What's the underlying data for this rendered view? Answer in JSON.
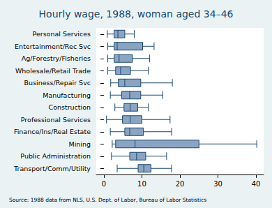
{
  "chart_data": {
    "type": "boxplot",
    "title": "Hourly wage, 1988, woman aged 34–46",
    "note": "Source: 1988 data from NLS, U.S. Dept. of Labor, Bureau of Labor Statistics",
    "orientation": "horizontal",
    "categories": [
      "Personal Services",
      "Entertainment/Rec Svc",
      "Ag/Forestry/Fisheries",
      "Wholesale/Retail Trade",
      "Business/Repair Svc",
      "Manufacturing",
      "Construction",
      "Professional Services",
      "Finance/Ins/Real Estate",
      "Mining",
      "Public Administration",
      "Transport/Comm/Utility"
    ],
    "values": [
      [
        0.9,
        2.7,
        3.7,
        5.5,
        8.0
      ],
      [
        1.0,
        2.7,
        3.5,
        10.2,
        13.2
      ],
      [
        1.0,
        2.7,
        4.0,
        7.5,
        12.0
      ],
      [
        1.0,
        3.1,
        4.4,
        7.0,
        11.7
      ],
      [
        1.8,
        3.8,
        5.5,
        9.7,
        18.0
      ],
      [
        1.7,
        4.7,
        6.8,
        9.7,
        15.5
      ],
      [
        2.9,
        5.3,
        6.9,
        8.9,
        11.7
      ],
      [
        0.7,
        4.9,
        6.9,
        10.0,
        17.4
      ],
      [
        1.7,
        5.5,
        6.8,
        10.4,
        17.8
      ],
      [
        2.2,
        3.1,
        8.2,
        25.0,
        40.2
      ],
      [
        2.0,
        6.8,
        8.6,
        11.0,
        16.5
      ],
      [
        3.5,
        9.0,
        10.5,
        12.4,
        17.8
      ]
    ],
    "color": "#8ba4c2",
    "xlim": [
      -2,
      42
    ],
    "xticks": [
      0,
      10,
      20,
      30,
      40
    ],
    "grid": false
  }
}
